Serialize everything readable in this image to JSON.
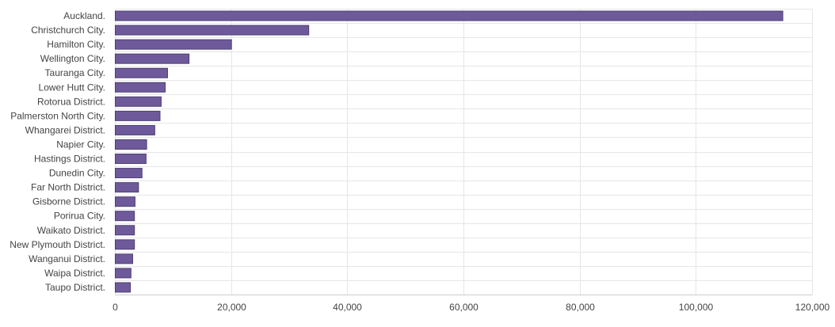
{
  "chart_data": {
    "type": "bar",
    "orientation": "horizontal",
    "title": "",
    "xlabel": "",
    "ylabel": "",
    "categories": [
      "Auckland.",
      "Christchurch City.",
      "Hamilton City.",
      "Wellington City.",
      "Tauranga City.",
      "Lower Hutt City.",
      "Rotorua District.",
      "Palmerston North City.",
      "Whangarei District.",
      "Napier City.",
      "Hastings District.",
      "Dunedin City.",
      "Far North District.",
      "Gisborne District.",
      "Porirua City.",
      "Waikato District.",
      "New Plymouth District.",
      "Wanganui District.",
      "Waipa District.",
      "Taupo District."
    ],
    "values": [
      114900,
      33300,
      20000,
      12700,
      9000,
      8600,
      7900,
      7700,
      6800,
      5400,
      5300,
      4600,
      4000,
      3400,
      3300,
      3300,
      3300,
      3000,
      2700,
      2600
    ],
    "xlim": [
      0,
      120000
    ],
    "xticks": [
      0,
      20000,
      40000,
      60000,
      80000,
      100000,
      120000
    ],
    "xtick_labels": [
      "0",
      "20,000",
      "40,000",
      "60,000",
      "80,000",
      "100,000",
      "120,000"
    ],
    "grid": true,
    "legend": "none",
    "colors": {
      "bar": "#6e5a9a",
      "bar_stroke": "#4e3f74",
      "grid": "#e6e6e6",
      "axis": "#cccccc",
      "text": "#444444"
    }
  }
}
